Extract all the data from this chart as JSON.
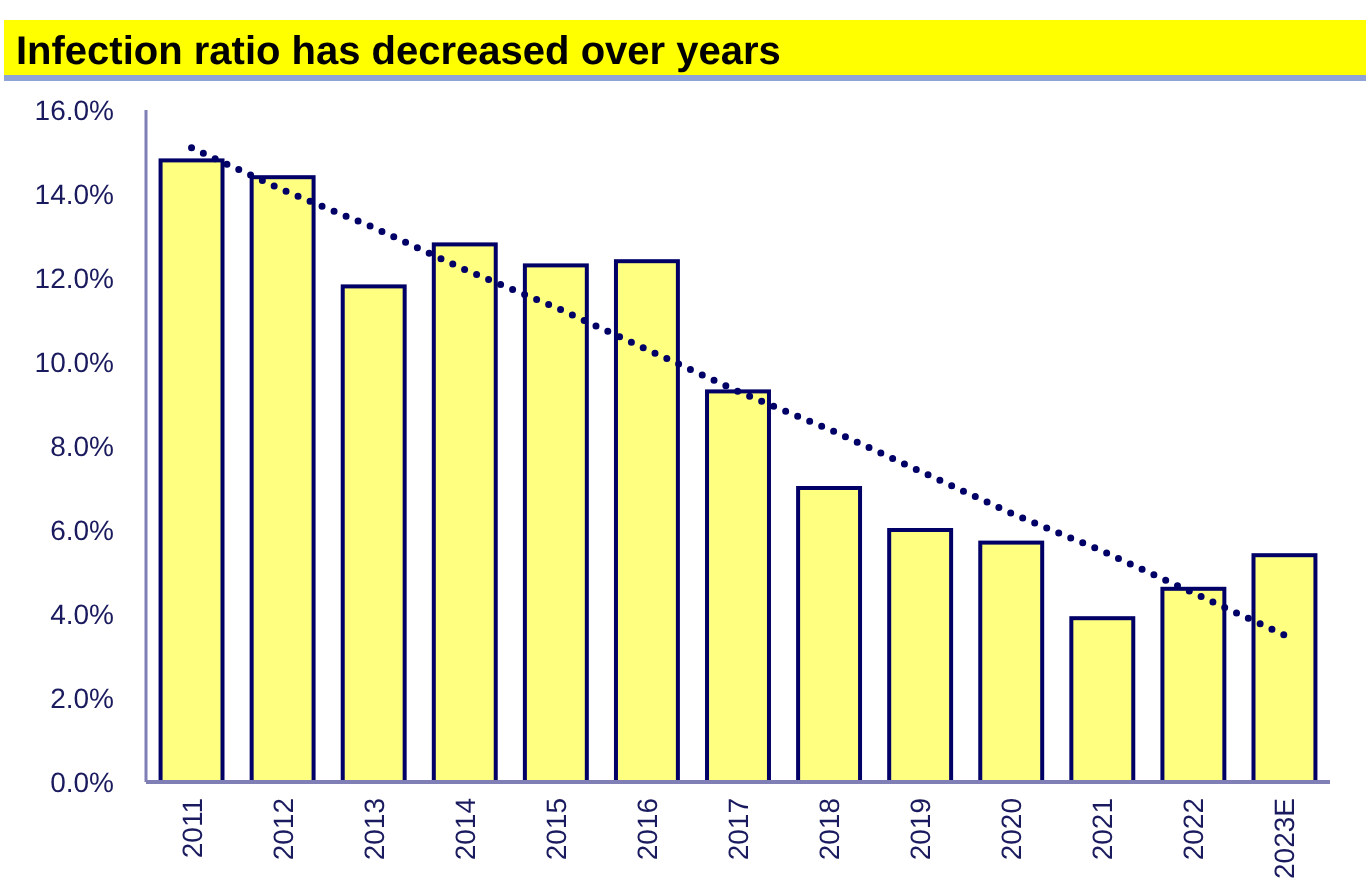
{
  "chart_data": {
    "type": "bar",
    "title": "Infection ratio has decreased over years",
    "categories": [
      "2011",
      "2012",
      "2013",
      "2014",
      "2015",
      "2016",
      "2017",
      "2018",
      "2019",
      "2020",
      "2021",
      "2022",
      "2023E"
    ],
    "series": [
      {
        "color": "#ffff80",
        "values": [
          14.8,
          14.4,
          11.8,
          12.8,
          12.3,
          12.4,
          9.3,
          7.0,
          6.0,
          5.7,
          3.9,
          4.6,
          5.4
        ]
      },
      {
        "type": "line",
        "color": "#000066",
        "line_style": "dotted",
        "marker": "none",
        "values": [
          15.1,
          14.1,
          13.2,
          12.2,
          11.3,
          10.3,
          9.3,
          8.4,
          7.4,
          6.4,
          5.5,
          4.5,
          3.5
        ]
      }
    ],
    "ylim": [
      0,
      16
    ],
    "yticks": [
      {
        "value": 0,
        "label": "0.0%"
      },
      {
        "value": 2,
        "label": "2.0%"
      },
      {
        "value": 4,
        "label": "4.0%"
      },
      {
        "value": 6,
        "label": "6.0%"
      },
      {
        "value": 8,
        "label": "8.0%"
      },
      {
        "value": 10,
        "label": "10.0%"
      },
      {
        "value": 12,
        "label": "12.0%"
      },
      {
        "value": 14,
        "label": "14.0%"
      },
      {
        "value": 16,
        "label": "16.0%"
      }
    ],
    "grid": false
  }
}
